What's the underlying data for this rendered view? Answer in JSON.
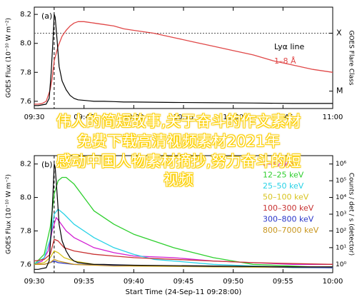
{
  "colors": {
    "lya": "#e04848",
    "ch_6_12": "#d21ed2",
    "ch_12_25": "#2ecf2e",
    "ch_25_50": "#28d2e6",
    "ch_50_100": "#d8c31e",
    "ch_100_300": "#c83232",
    "ch_300_800": "#2a36c8",
    "ch_800_7000": "#c8961e",
    "goes": "#000000",
    "flare_line": "#555555",
    "overlay_text": "#ffffff",
    "overlay_stroke": "#ffd200"
  },
  "overlay": {
    "line1": "伟人的简短故事,关于奋斗的作文素材",
    "line2": "免费下载高清视频素材2021年",
    "line3": "感动中国人物素材摘抄,努力奋斗的短",
    "line4": "视频"
  },
  "chart_data": [
    {
      "panel_label": "(a)",
      "type": "line",
      "ylabel": "GOES Flux (10⁻¹⁰ W m⁻²)",
      "y2label": "GOES Flare Class",
      "ylim": [
        7.55,
        8.25
      ],
      "yticks": [
        "7.6",
        "7.8",
        "8.0",
        "8.2"
      ],
      "xlim": [
        9.5,
        11.0
      ],
      "xticks": [
        "09:30",
        "09:45",
        "10:00",
        "10:15",
        "10:30",
        "10:45",
        "11:00"
      ],
      "flare_classes": [
        "X",
        "M"
      ],
      "flare_class_levels": [
        8.07,
        7.67
      ],
      "flare_threshold": 8.07,
      "legend_title": "Lyα line",
      "legend_sub": "1–8 Å",
      "peak_time": 9.6,
      "series": [
        {
          "name": "Lyα line",
          "color_key": "lya",
          "points": [
            [
              9.5,
              7.58
            ],
            [
              9.52,
              7.58
            ],
            [
              9.54,
              7.585
            ],
            [
              9.56,
              7.6
            ],
            [
              9.58,
              7.68
            ],
            [
              9.59,
              7.76
            ],
            [
              9.6,
              7.88
            ],
            [
              9.62,
              7.98
            ],
            [
              9.64,
              8.05
            ],
            [
              9.66,
              8.09
            ],
            [
              9.68,
              8.12
            ],
            [
              9.7,
              8.14
            ],
            [
              9.72,
              8.15
            ],
            [
              9.75,
              8.15
            ],
            [
              9.8,
              8.14
            ],
            [
              9.85,
              8.13
            ],
            [
              9.9,
              8.12
            ],
            [
              9.95,
              8.1
            ],
            [
              10.0,
              8.09
            ],
            [
              10.1,
              8.07
            ],
            [
              10.2,
              8.04
            ],
            [
              10.3,
              8.01
            ],
            [
              10.4,
              7.98
            ],
            [
              10.5,
              7.95
            ],
            [
              10.6,
              7.92
            ],
            [
              10.7,
              7.88
            ],
            [
              10.8,
              7.85
            ],
            [
              10.9,
              7.82
            ],
            [
              11.0,
              7.8
            ]
          ]
        },
        {
          "name": "GOES 1–8 Å",
          "color_key": "goes",
          "points": [
            [
              9.5,
              7.57
            ],
            [
              9.52,
              7.57
            ],
            [
              9.54,
              7.575
            ],
            [
              9.56,
              7.58
            ],
            [
              9.575,
              7.62
            ],
            [
              9.585,
              7.8
            ],
            [
              9.595,
              8.05
            ],
            [
              9.6,
              8.2
            ],
            [
              9.605,
              8.18
            ],
            [
              9.615,
              8.02
            ],
            [
              9.625,
              7.84
            ],
            [
              9.64,
              7.74
            ],
            [
              9.66,
              7.68
            ],
            [
              9.68,
              7.64
            ],
            [
              9.7,
              7.62
            ],
            [
              9.72,
              7.61
            ],
            [
              9.76,
              7.605
            ],
            [
              9.8,
              7.6
            ],
            [
              9.85,
              7.6
            ],
            [
              9.9,
              7.598
            ],
            [
              9.95,
              7.595
            ],
            [
              10.0,
              7.595
            ],
            [
              10.2,
              7.592
            ],
            [
              10.4,
              7.59
            ],
            [
              10.6,
              7.588
            ],
            [
              10.8,
              7.585
            ],
            [
              11.0,
              7.585
            ]
          ]
        }
      ]
    },
    {
      "panel_label": "(b)",
      "type": "line",
      "xlabel": "Start Time (24-Sep-11 09:28:00)",
      "ylabel": "GOES Flux (10⁻¹⁰ W m⁻²)",
      "y2label": "Counts / det / s (detector)",
      "ylim": [
        7.55,
        8.25
      ],
      "yticks": [
        "7.6",
        "7.8",
        "8.0",
        "8.2"
      ],
      "xlim": [
        9.5,
        11.0
      ],
      "xticks": [
        "09:30",
        "09:35",
        "09:40",
        "09:45",
        "09:50",
        "09:55",
        "10:00"
      ],
      "y2ticks": [
        "10⁰",
        "10¹",
        "10²",
        "10³",
        "10⁴",
        "10⁵",
        "10⁶"
      ],
      "peak_time": 9.6,
      "legend": [
        {
          "name": "6–12 keV",
          "color_key": "ch_6_12"
        },
        {
          "name": "12–25 keV",
          "color_key": "ch_12_25"
        },
        {
          "name": "25–50 keV",
          "color_key": "ch_25_50"
        },
        {
          "name": "50–100 keV",
          "color_key": "ch_50_100"
        },
        {
          "name": "100–300 keV",
          "color_key": "ch_100_300"
        },
        {
          "name": "300–800 keV",
          "color_key": "ch_300_800"
        },
        {
          "name": "800–7000 keV",
          "color_key": "ch_800_7000"
        }
      ],
      "series": [
        {
          "name": "6–12 keV",
          "color_key": "ch_6_12",
          "points": [
            [
              9.5,
              7.6
            ],
            [
              9.54,
              7.62
            ],
            [
              9.57,
              7.68
            ],
            [
              9.59,
              7.8
            ],
            [
              9.61,
              7.88
            ],
            [
              9.63,
              7.85
            ],
            [
              9.66,
              7.8
            ],
            [
              9.7,
              7.76
            ],
            [
              9.75,
              7.73
            ],
            [
              9.8,
              7.7
            ],
            [
              9.9,
              7.67
            ],
            [
              10.0,
              7.65
            ],
            [
              10.2,
              7.64
            ],
            [
              10.4,
              7.62
            ],
            [
              10.6,
              7.61
            ],
            [
              10.8,
              7.6
            ],
            [
              11.0,
              7.6
            ]
          ]
        },
        {
          "name": "12–25 keV",
          "color_key": "ch_12_25",
          "points": [
            [
              9.5,
              7.6
            ],
            [
              9.55,
              7.66
            ],
            [
              9.58,
              7.82
            ],
            [
              9.6,
              8.02
            ],
            [
              9.62,
              8.1
            ],
            [
              9.64,
              8.12
            ],
            [
              9.66,
              8.12
            ],
            [
              9.7,
              8.08
            ],
            [
              9.75,
              8.0
            ],
            [
              9.8,
              7.92
            ],
            [
              9.9,
              7.84
            ],
            [
              10.0,
              7.78
            ],
            [
              10.1,
              7.74
            ],
            [
              10.2,
              7.7
            ],
            [
              10.3,
              7.67
            ],
            [
              10.4,
              7.64
            ],
            [
              10.5,
              7.62
            ],
            [
              10.6,
              7.6
            ],
            [
              11.0,
              7.58
            ]
          ]
        },
        {
          "name": "25–50 keV",
          "color_key": "ch_25_50",
          "points": [
            [
              9.5,
              7.6
            ],
            [
              9.55,
              7.64
            ],
            [
              9.58,
              7.75
            ],
            [
              9.6,
              7.9
            ],
            [
              9.62,
              7.93
            ],
            [
              9.65,
              7.9
            ],
            [
              9.7,
              7.84
            ],
            [
              9.8,
              7.76
            ],
            [
              9.9,
              7.7
            ],
            [
              10.0,
              7.66
            ],
            [
              10.1,
              7.63
            ],
            [
              10.2,
              7.62
            ],
            [
              10.4,
              7.6
            ],
            [
              10.6,
              7.59
            ],
            [
              10.8,
              7.58
            ],
            [
              11.0,
              7.58
            ]
          ]
        },
        {
          "name": "50–100 keV",
          "color_key": "ch_50_100",
          "points": [
            [
              9.5,
              7.6
            ],
            [
              9.55,
              7.61
            ],
            [
              9.58,
              7.64
            ],
            [
              9.6,
              7.68
            ],
            [
              9.62,
              7.67
            ],
            [
              9.65,
              7.64
            ],
            [
              9.7,
              7.62
            ],
            [
              9.8,
              7.6
            ],
            [
              10.0,
              7.59
            ],
            [
              10.4,
              7.585
            ],
            [
              11.0,
              7.58
            ]
          ]
        },
        {
          "name": "100–300 keV",
          "color_key": "ch_100_300",
          "points": [
            [
              9.5,
              7.62
            ],
            [
              9.55,
              7.63
            ],
            [
              9.58,
              7.66
            ],
            [
              9.6,
              7.75
            ],
            [
              9.62,
              7.74
            ],
            [
              9.65,
              7.7
            ],
            [
              9.7,
              7.68
            ],
            [
              9.8,
              7.66
            ],
            [
              9.9,
              7.65
            ],
            [
              10.0,
              7.64
            ],
            [
              10.2,
              7.63
            ],
            [
              10.4,
              7.62
            ],
            [
              10.6,
              7.61
            ],
            [
              11.0,
              7.6
            ]
          ]
        },
        {
          "name": "300–800 keV",
          "color_key": "ch_300_800",
          "points": [
            [
              9.5,
              7.6
            ],
            [
              9.55,
              7.6
            ],
            [
              9.58,
              7.61
            ],
            [
              9.6,
              7.62
            ],
            [
              9.62,
              7.61
            ],
            [
              9.7,
              7.6
            ],
            [
              9.9,
              7.595
            ],
            [
              10.2,
              7.59
            ],
            [
              10.6,
              7.585
            ],
            [
              11.0,
              7.58
            ]
          ]
        },
        {
          "name": "800–7000 keV",
          "color_key": "ch_800_7000",
          "points": [
            [
              9.5,
              7.6
            ],
            [
              9.55,
              7.6
            ],
            [
              9.58,
              7.61
            ],
            [
              9.6,
              7.63
            ],
            [
              9.62,
              7.62
            ],
            [
              9.7,
              7.6
            ],
            [
              9.9,
              7.59
            ],
            [
              10.3,
              7.59
            ],
            [
              10.6,
              7.585
            ],
            [
              11.0,
              7.585
            ]
          ]
        },
        {
          "name": "GOES",
          "color_key": "goes",
          "points": [
            [
              9.5,
              7.57
            ],
            [
              9.52,
              7.57
            ],
            [
              9.54,
              7.575
            ],
            [
              9.56,
              7.58
            ],
            [
              9.575,
              7.62
            ],
            [
              9.585,
              7.8
            ],
            [
              9.595,
              8.05
            ],
            [
              9.6,
              8.2
            ],
            [
              9.605,
              8.18
            ],
            [
              9.615,
              8.02
            ],
            [
              9.625,
              7.84
            ],
            [
              9.64,
              7.74
            ],
            [
              9.66,
              7.68
            ],
            [
              9.68,
              7.64
            ],
            [
              9.7,
              7.62
            ],
            [
              9.72,
              7.61
            ],
            [
              9.76,
              7.605
            ],
            [
              9.8,
              7.6
            ],
            [
              9.85,
              7.6
            ],
            [
              9.9,
              7.598
            ],
            [
              10.0,
              7.595
            ],
            [
              10.4,
              7.59
            ],
            [
              10.8,
              7.585
            ],
            [
              11.0,
              7.585
            ]
          ]
        }
      ]
    }
  ]
}
